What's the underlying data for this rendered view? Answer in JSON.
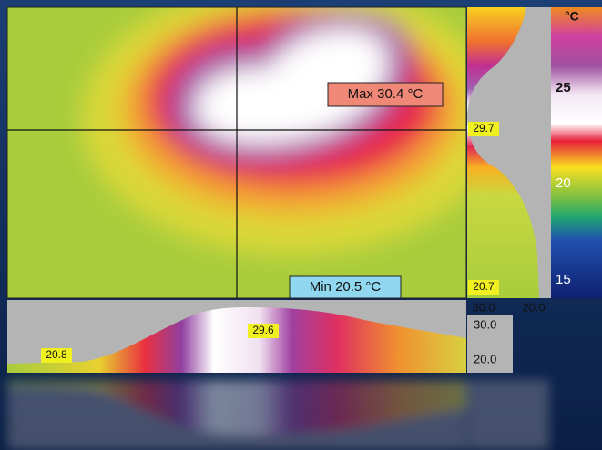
{
  "image": {
    "max_label": "Max 30.4 °C",
    "min_label": "Min 20.5 °C"
  },
  "vertical_profile": {
    "value_label": "29.7",
    "min_label": "20.7",
    "axis_labels": [
      "30.0",
      "20.0"
    ]
  },
  "horizontal_profile": {
    "max_label": "29.6",
    "min_label": "20.8",
    "axis_labels": [
      "30.0",
      "20.0"
    ]
  },
  "color_scale": {
    "unit": "°C",
    "ticks": [
      "25",
      "20",
      "15"
    ]
  }
}
